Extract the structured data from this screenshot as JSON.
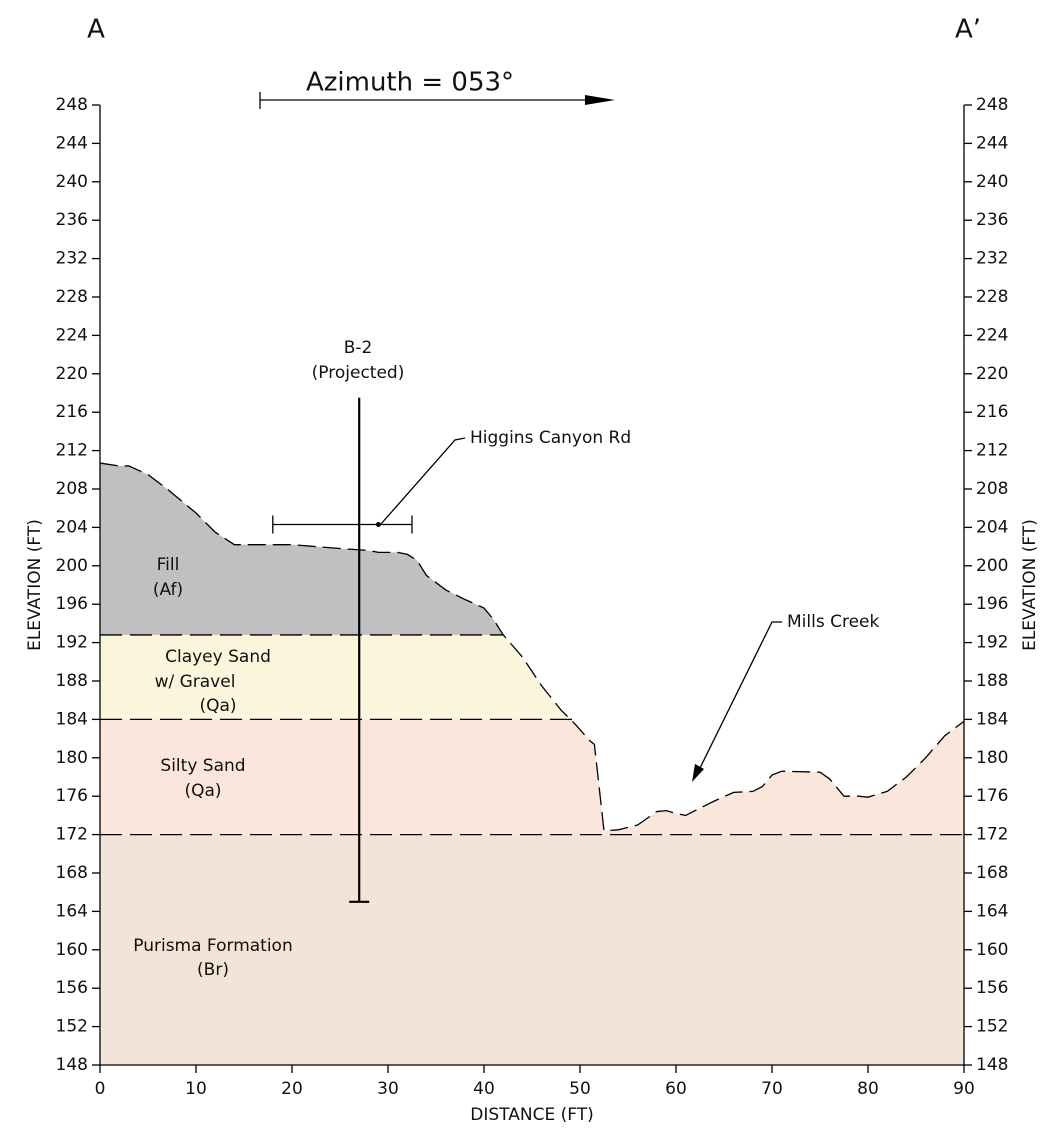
{
  "chart_data": {
    "type": "cross-section",
    "section_start": "A",
    "section_end": "A’",
    "azimuth": "Azimuth = 053°",
    "xlabel": "DISTANCE (FT)",
    "ylabel": "ELEVATION (FT)",
    "xlim": [
      0,
      90
    ],
    "ylim": [
      148,
      248
    ],
    "xticks": [
      0,
      10,
      20,
      30,
      40,
      50,
      60,
      70,
      80,
      90
    ],
    "yticks": [
      148,
      152,
      156,
      160,
      164,
      168,
      172,
      176,
      180,
      184,
      188,
      192,
      196,
      200,
      204,
      208,
      212,
      216,
      220,
      224,
      228,
      232,
      236,
      240,
      244,
      248
    ],
    "surface": {
      "x": [
        0,
        2,
        3,
        5,
        7,
        10,
        12,
        14,
        16,
        20,
        25,
        28,
        29,
        31,
        32,
        33,
        34,
        36,
        38,
        40,
        41,
        42,
        44,
        46,
        48,
        49.5,
        51,
        51.5,
        52.5,
        54,
        56,
        58,
        59,
        60,
        61,
        62,
        64,
        66,
        68,
        69,
        70,
        71,
        75,
        76,
        77.5,
        79,
        80,
        82,
        84,
        86,
        88,
        90
      ],
      "y": [
        210.7,
        210.4,
        210.4,
        209.5,
        208,
        205.5,
        203.5,
        202.2,
        202.2,
        202.2,
        201.8,
        201.6,
        201.4,
        201.4,
        201.2,
        200.6,
        199,
        197.5,
        196.5,
        195.6,
        194.4,
        192.8,
        190.5,
        187.5,
        185,
        183.5,
        181.8,
        181.4,
        172.4,
        172.5,
        173,
        174.4,
        174.5,
        174.2,
        174,
        174.5,
        175.5,
        176.4,
        176.5,
        177,
        178.2,
        178.6,
        178.5,
        177.8,
        176,
        176,
        175.9,
        176.5,
        178,
        180,
        182.3,
        183.8
      ]
    },
    "contacts": [
      {
        "elevation": 192.8,
        "to": 42
      },
      {
        "elevation": 184,
        "to": 49.5
      },
      {
        "elevation": 172,
        "to": 90
      }
    ],
    "layers": [
      {
        "lines": [
          "Fill",
          "(Af)"
        ],
        "color": "#c0c0c0"
      },
      {
        "lines": [
          "Clayey Sand",
          "w/ Gravel",
          "(Qa)"
        ],
        "color": "#fbf6dc"
      },
      {
        "lines": [
          "Silty Sand",
          "(Qa)"
        ],
        "color": "#fbe6dc"
      },
      {
        "lines": [
          "Purisma Formation",
          "(Br)"
        ],
        "color": "#f3e4d8"
      }
    ],
    "boring": {
      "name": "B-2",
      "note": "(Projected)",
      "x": 27,
      "top": 217.5,
      "bottom": 165
    },
    "road": {
      "name": "Higgins Canyon Rd",
      "x": [
        18,
        32.5
      ],
      "point": 29,
      "elevation": 204.3
    },
    "creek": "Mills Creek"
  }
}
